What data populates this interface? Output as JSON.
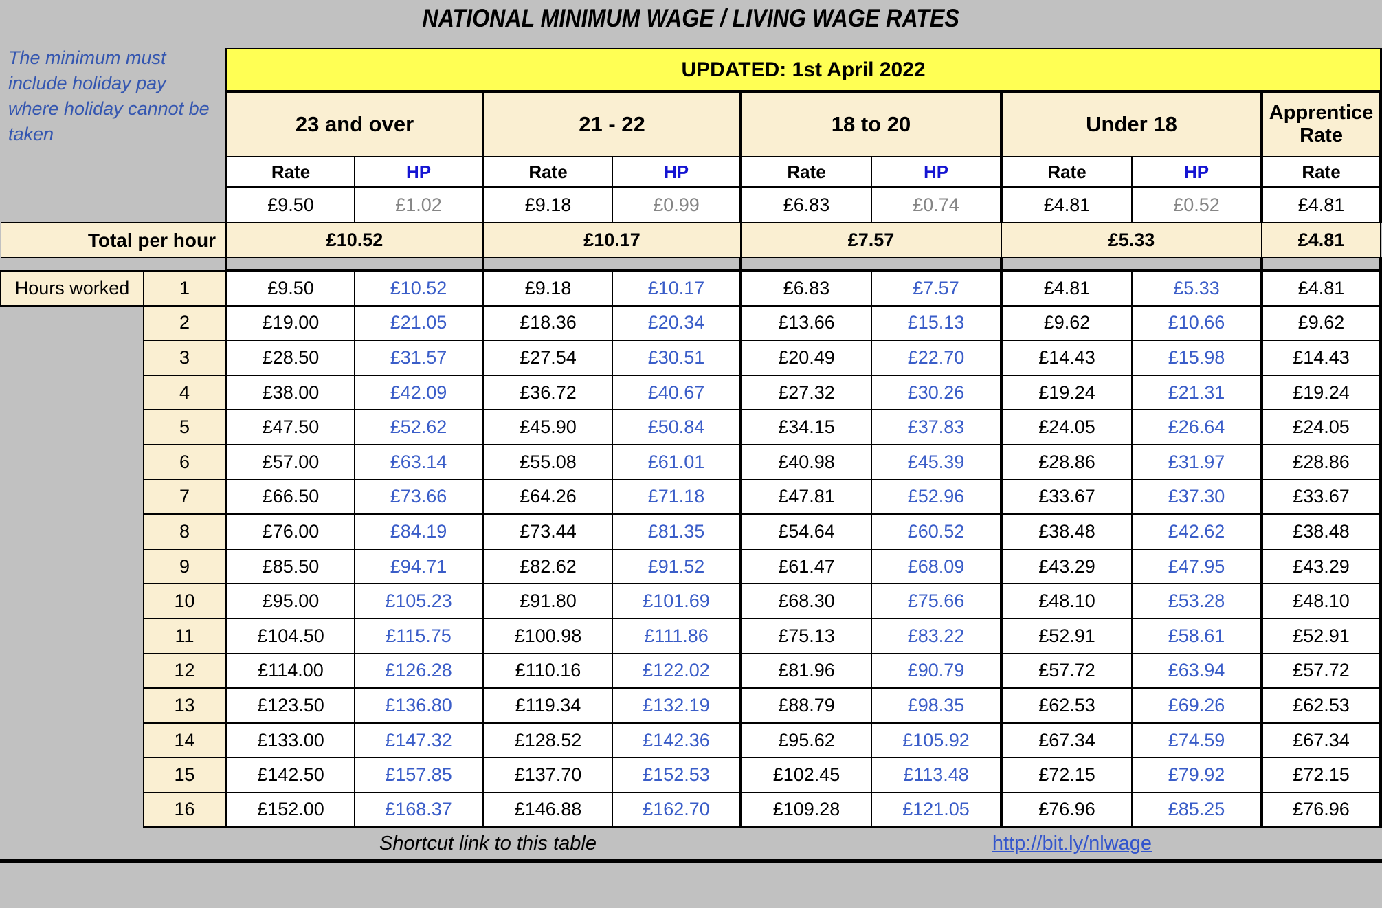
{
  "title": "NATIONAL MINIMUM WAGE / LIVING WAGE RATES",
  "note": "The minimum must include holiday pay where holiday cannot be taken",
  "banner": "UPDATED: 1st April 2022",
  "labels": {
    "rate": "Rate",
    "hp": "HP",
    "total": "Total per hour",
    "hours_worked": "Hours worked"
  },
  "groups": [
    {
      "label": "23 and over",
      "rate": "£9.50",
      "hp": "£1.02",
      "total": "£10.52"
    },
    {
      "label": "21 - 22",
      "rate": "£9.18",
      "hp": "£0.99",
      "total": "£10.17"
    },
    {
      "label": "18 to 20",
      "rate": "£6.83",
      "hp": "£0.74",
      "total": "£7.57"
    },
    {
      "label": "Under 18",
      "rate": "£4.81",
      "hp": "£0.52",
      "total": "£5.33"
    }
  ],
  "apprentice": {
    "label": "Apprentice Rate",
    "rate": "£4.81",
    "total": "£4.81"
  },
  "hours": [
    {
      "h": "1",
      "v": [
        "£9.50",
        "£10.52",
        "£9.18",
        "£10.17",
        "£6.83",
        "£7.57",
        "£4.81",
        "£5.33",
        "£4.81"
      ]
    },
    {
      "h": "2",
      "v": [
        "£19.00",
        "£21.05",
        "£18.36",
        "£20.34",
        "£13.66",
        "£15.13",
        "£9.62",
        "£10.66",
        "£9.62"
      ]
    },
    {
      "h": "3",
      "v": [
        "£28.50",
        "£31.57",
        "£27.54",
        "£30.51",
        "£20.49",
        "£22.70",
        "£14.43",
        "£15.98",
        "£14.43"
      ]
    },
    {
      "h": "4",
      "v": [
        "£38.00",
        "£42.09",
        "£36.72",
        "£40.67",
        "£27.32",
        "£30.26",
        "£19.24",
        "£21.31",
        "£19.24"
      ]
    },
    {
      "h": "5",
      "v": [
        "£47.50",
        "£52.62",
        "£45.90",
        "£50.84",
        "£34.15",
        "£37.83",
        "£24.05",
        "£26.64",
        "£24.05"
      ]
    },
    {
      "h": "6",
      "v": [
        "£57.00",
        "£63.14",
        "£55.08",
        "£61.01",
        "£40.98",
        "£45.39",
        "£28.86",
        "£31.97",
        "£28.86"
      ]
    },
    {
      "h": "7",
      "v": [
        "£66.50",
        "£73.66",
        "£64.26",
        "£71.18",
        "£47.81",
        "£52.96",
        "£33.67",
        "£37.30",
        "£33.67"
      ]
    },
    {
      "h": "8",
      "v": [
        "£76.00",
        "£84.19",
        "£73.44",
        "£81.35",
        "£54.64",
        "£60.52",
        "£38.48",
        "£42.62",
        "£38.48"
      ]
    },
    {
      "h": "9",
      "v": [
        "£85.50",
        "£94.71",
        "£82.62",
        "£91.52",
        "£61.47",
        "£68.09",
        "£43.29",
        "£47.95",
        "£43.29"
      ]
    },
    {
      "h": "10",
      "v": [
        "£95.00",
        "£105.23",
        "£91.80",
        "£101.69",
        "£68.30",
        "£75.66",
        "£48.10",
        "£53.28",
        "£48.10"
      ]
    },
    {
      "h": "11",
      "v": [
        "£104.50",
        "£115.75",
        "£100.98",
        "£111.86",
        "£75.13",
        "£83.22",
        "£52.91",
        "£58.61",
        "£52.91"
      ]
    },
    {
      "h": "12",
      "v": [
        "£114.00",
        "£126.28",
        "£110.16",
        "£122.02",
        "£81.96",
        "£90.79",
        "£57.72",
        "£63.94",
        "£57.72"
      ]
    },
    {
      "h": "13",
      "v": [
        "£123.50",
        "£136.80",
        "£119.34",
        "£132.19",
        "£88.79",
        "£98.35",
        "£62.53",
        "£69.26",
        "£62.53"
      ]
    },
    {
      "h": "14",
      "v": [
        "£133.00",
        "£147.32",
        "£128.52",
        "£142.36",
        "£95.62",
        "£105.92",
        "£67.34",
        "£74.59",
        "£67.34"
      ]
    },
    {
      "h": "15",
      "v": [
        "£142.50",
        "£157.85",
        "£137.70",
        "£152.53",
        "£102.45",
        "£113.48",
        "£72.15",
        "£79.92",
        "£72.15"
      ]
    },
    {
      "h": "16",
      "v": [
        "£152.00",
        "£168.37",
        "£146.88",
        "£162.70",
        "£109.28",
        "£121.05",
        "£76.96",
        "£85.25",
        "£76.96"
      ]
    }
  ],
  "footer": {
    "shortcut_text": "Shortcut link to this table",
    "link_text": "http://bit.ly/nlwage"
  },
  "colors": {
    "page_bg": "#C1C1C1",
    "yellow": "#FFFF54",
    "cream": "#FAEFD2",
    "hp_blue": "#3A5DC8",
    "hp_header_blue": "#1414D2",
    "note_blue": "#3456B0",
    "link_blue": "#3355CC",
    "muted_gray": "#858585"
  }
}
